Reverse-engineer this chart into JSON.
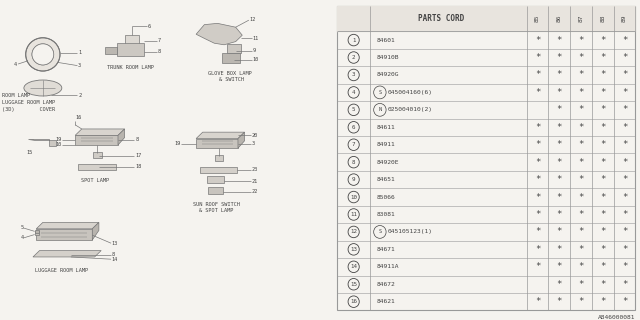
{
  "bg_color": "#f5f3ef",
  "text_color": "#444444",
  "line_color": "#777777",
  "table_line_color": "#999999",
  "part_number_label": "PARTS CORD",
  "year_cols": [
    "85",
    "86",
    "87",
    "88",
    "89"
  ],
  "rows": [
    {
      "num": "1",
      "special": "",
      "part": "84601",
      "stars": [
        true,
        true,
        true,
        true,
        true
      ]
    },
    {
      "num": "2",
      "special": "",
      "part": "84910B",
      "stars": [
        true,
        true,
        true,
        true,
        true
      ]
    },
    {
      "num": "3",
      "special": "",
      "part": "84920G",
      "stars": [
        true,
        true,
        true,
        true,
        true
      ]
    },
    {
      "num": "4",
      "special": "S",
      "part": "045004160(6)",
      "stars": [
        true,
        true,
        true,
        true,
        true
      ]
    },
    {
      "num": "5",
      "special": "N",
      "part": "025004010(2)",
      "stars": [
        false,
        true,
        true,
        true,
        true
      ]
    },
    {
      "num": "6",
      "special": "",
      "part": "84611",
      "stars": [
        true,
        true,
        true,
        true,
        true
      ]
    },
    {
      "num": "7",
      "special": "",
      "part": "84911",
      "stars": [
        true,
        true,
        true,
        true,
        true
      ]
    },
    {
      "num": "8",
      "special": "",
      "part": "84920E",
      "stars": [
        true,
        true,
        true,
        true,
        true
      ]
    },
    {
      "num": "9",
      "special": "",
      "part": "84651",
      "stars": [
        true,
        true,
        true,
        true,
        true
      ]
    },
    {
      "num": "10",
      "special": "",
      "part": "85066",
      "stars": [
        true,
        true,
        true,
        true,
        true
      ]
    },
    {
      "num": "11",
      "special": "",
      "part": "83081",
      "stars": [
        true,
        true,
        true,
        true,
        true
      ]
    },
    {
      "num": "12",
      "special": "S",
      "part": "045105123(1)",
      "stars": [
        true,
        true,
        true,
        true,
        true
      ]
    },
    {
      "num": "13",
      "special": "",
      "part": "84671",
      "stars": [
        true,
        true,
        true,
        true,
        true
      ]
    },
    {
      "num": "14",
      "special": "",
      "part": "84911A",
      "stars": [
        true,
        true,
        true,
        true,
        true
      ]
    },
    {
      "num": "15",
      "special": "",
      "part": "84672",
      "stars": [
        false,
        true,
        true,
        true,
        true
      ]
    },
    {
      "num": "16",
      "special": "",
      "part": "84621",
      "stars": [
        true,
        true,
        true,
        true,
        true
      ]
    }
  ],
  "footnote": "A846000081"
}
